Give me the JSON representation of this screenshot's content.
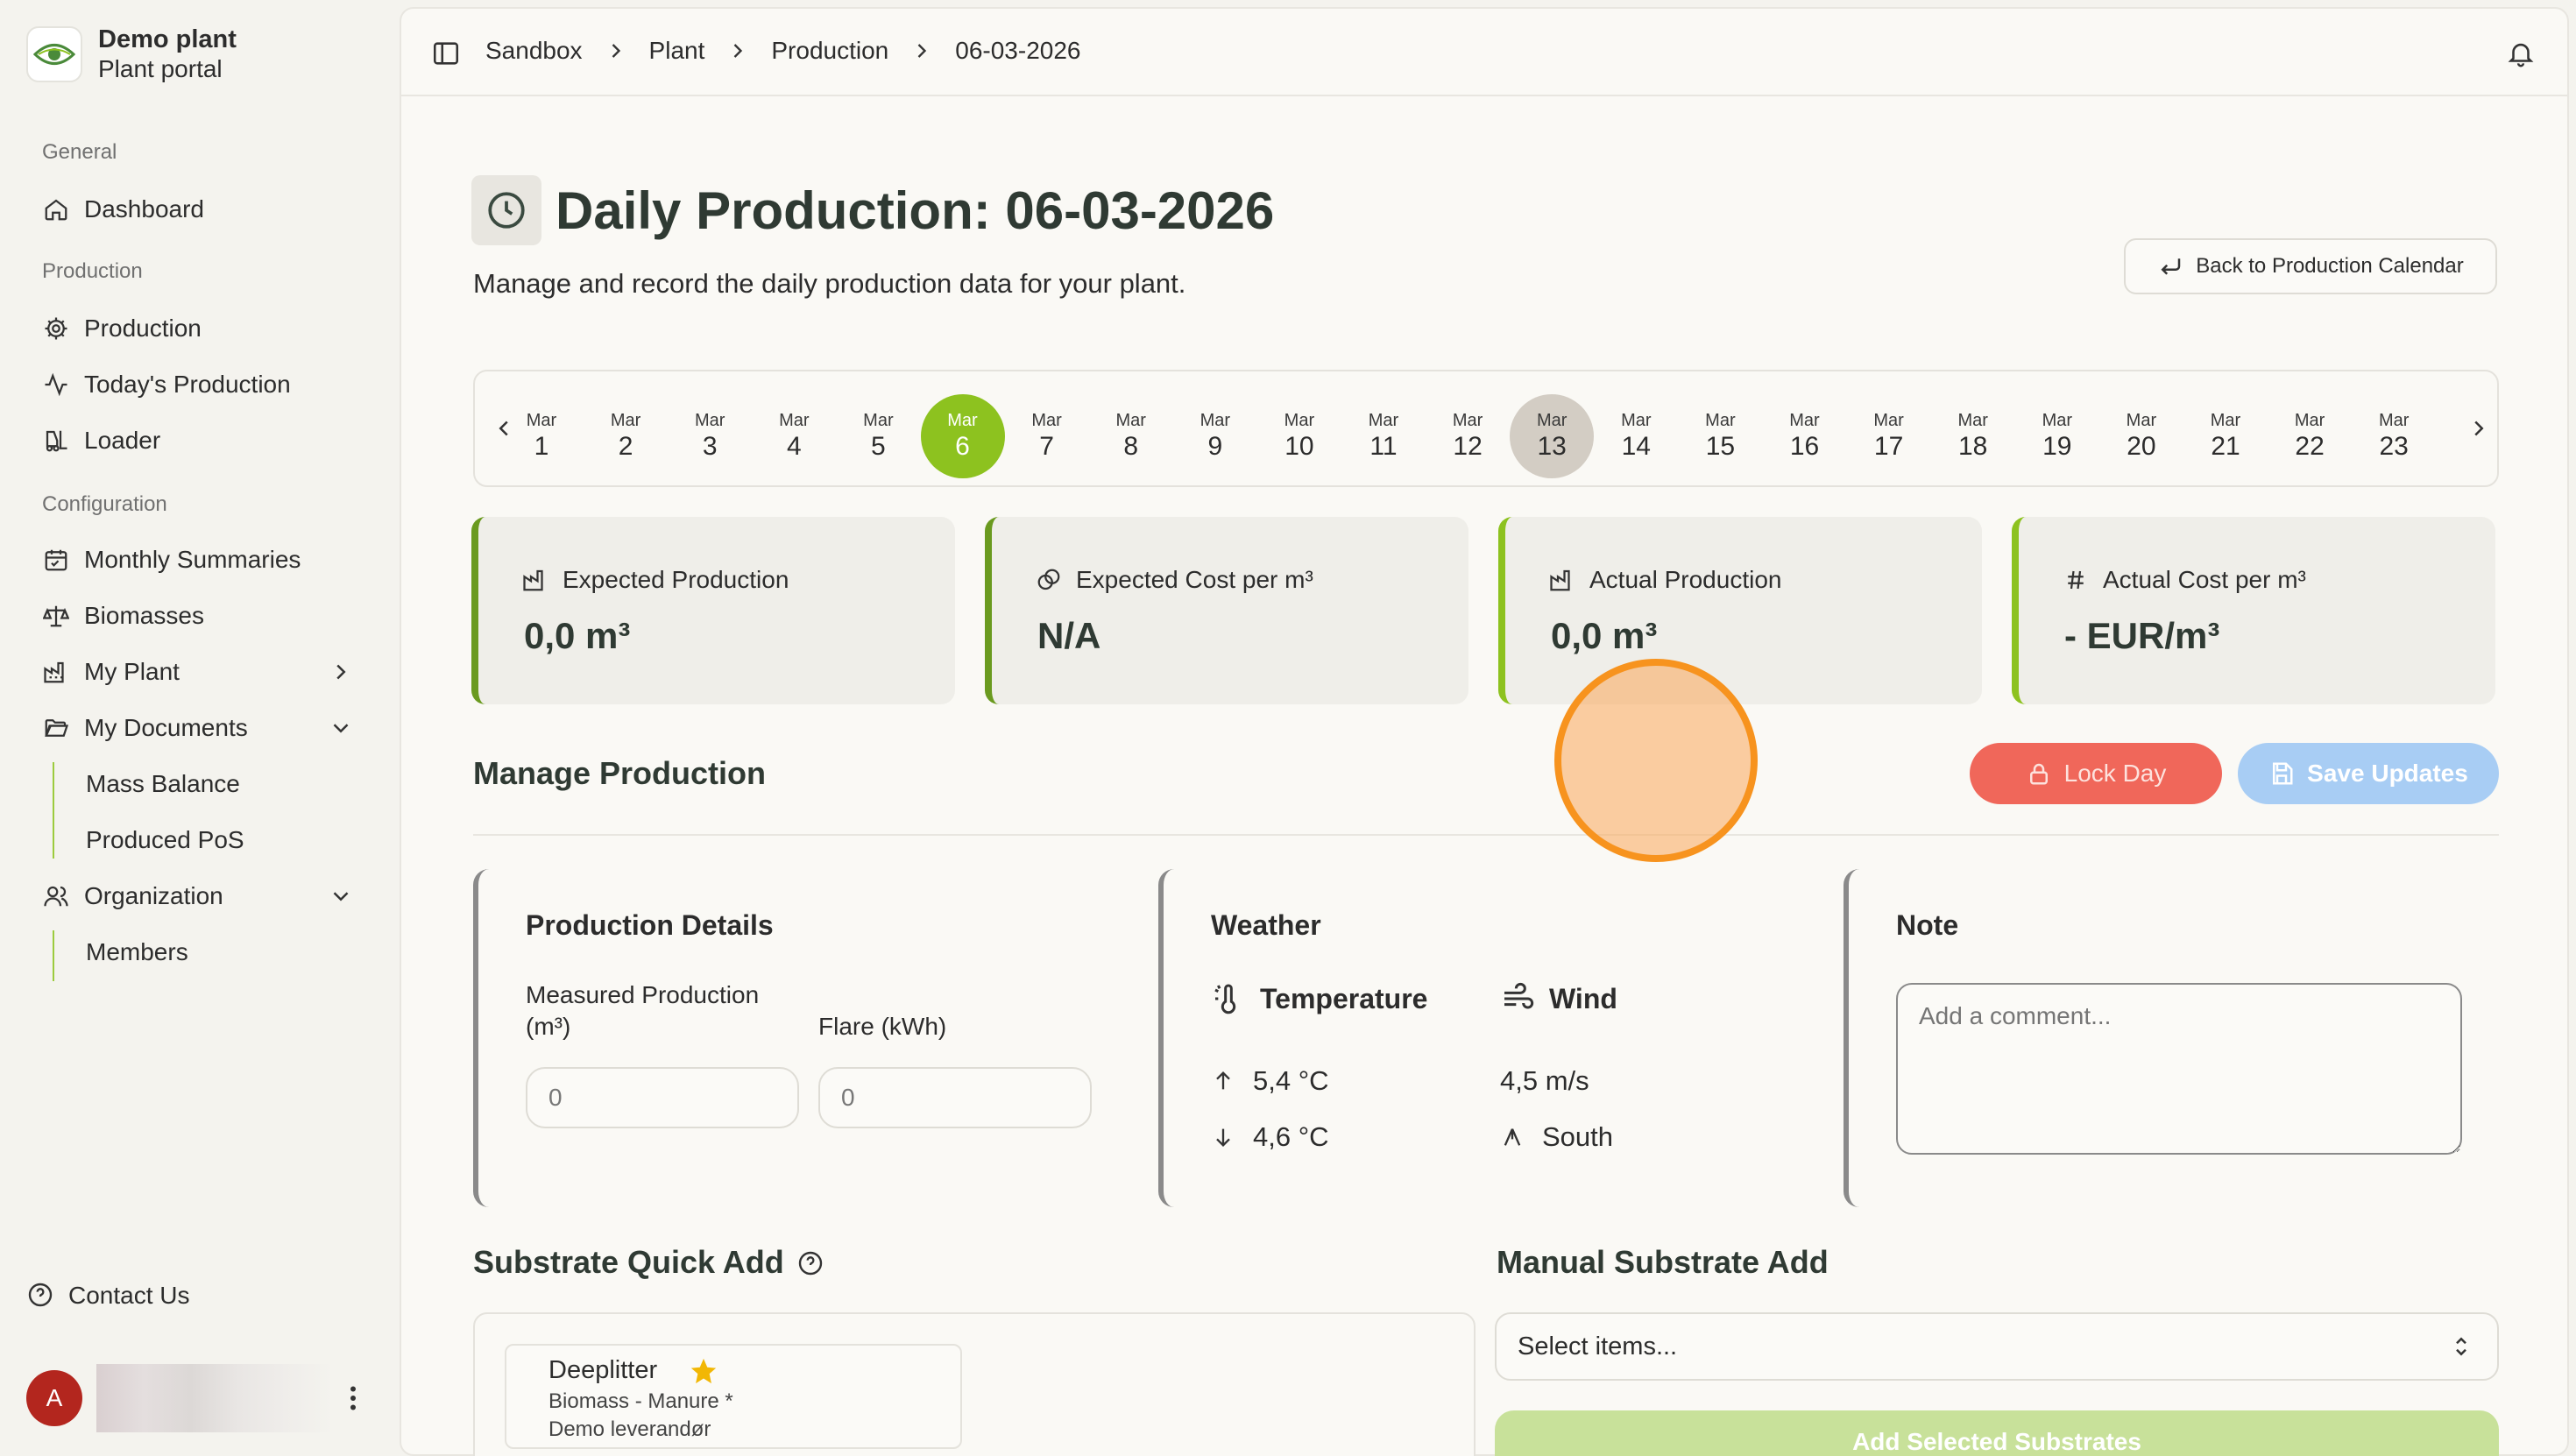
{
  "brand": {
    "name": "Demo plant",
    "subtitle": "Plant portal"
  },
  "sidebar": {
    "groups": [
      {
        "label": "General",
        "items": [
          {
            "label": "Dashboard",
            "icon": "home-icon"
          }
        ]
      },
      {
        "label": "Production",
        "items": [
          {
            "label": "Production",
            "icon": "cog-icon"
          },
          {
            "label": "Today's Production",
            "icon": "activity-icon"
          },
          {
            "label": "Loader",
            "icon": "forklift-icon"
          }
        ]
      },
      {
        "label": "Configuration",
        "items": [
          {
            "label": "Monthly Summaries",
            "icon": "calendar-icon"
          },
          {
            "label": "Biomasses",
            "icon": "scale-icon"
          },
          {
            "label": "My Plant",
            "icon": "factory-icon"
          },
          {
            "label": "My Documents",
            "icon": "folder-open-icon",
            "children": [
              "Mass Balance",
              "Produced PoS"
            ]
          },
          {
            "label": "Organization",
            "icon": "users-icon",
            "children": [
              "Members"
            ]
          }
        ]
      }
    ],
    "contact": "Contact Us",
    "user": {
      "initial": "A"
    }
  },
  "breadcrumb": [
    "Sandbox",
    "Plant",
    "Production",
    "06-03-2026"
  ],
  "page": {
    "title": "Daily Production: 06-03-2026",
    "subtitle": "Manage and record the daily production data for your plant.",
    "back_button": "Back to Production Calendar"
  },
  "date_strip": {
    "month": "Mar",
    "days": [
      "1",
      "2",
      "3",
      "4",
      "5",
      "6",
      "7",
      "8",
      "9",
      "10",
      "11",
      "12",
      "13",
      "14",
      "15",
      "16",
      "17",
      "18",
      "19",
      "20",
      "21",
      "22",
      "23"
    ],
    "selected": "6",
    "today": "13"
  },
  "stats": [
    {
      "label": "Expected Production",
      "value": "0,0 m³",
      "icon": "factory-icon",
      "accent": "#6a9a1f"
    },
    {
      "label": "Expected Cost per m³",
      "value": "N/A",
      "icon": "coins-icon",
      "accent": "#6a9a1f"
    },
    {
      "label": "Actual Production",
      "value": "0,0 m³",
      "icon": "factory-icon",
      "accent": "#8dc21f"
    },
    {
      "label": "Actual Cost per m³",
      "value": "- EUR/m³",
      "icon": "hash-icon",
      "accent": "#8dc21f"
    }
  ],
  "manage": {
    "title": "Manage Production",
    "lock_button": "Lock Day",
    "save_button": "Save Updates"
  },
  "production_details": {
    "title": "Production Details",
    "measured_label_line1": "Measured Production",
    "measured_label_line2": "(m³)",
    "measured_value": "0",
    "flare_label": "Flare (kWh)",
    "flare_value": "0"
  },
  "weather": {
    "title": "Weather",
    "temperature_label": "Temperature",
    "wind_label": "Wind",
    "temp_high": "5,4 °C",
    "temp_low": "4,6 °C",
    "wind_speed": "4,5 m/s",
    "wind_direction": "South"
  },
  "note": {
    "title": "Note",
    "placeholder": "Add a comment..."
  },
  "quick_add": {
    "title": "Substrate Quick Add",
    "items": [
      {
        "name": "Deeplitter",
        "category": "Biomass - Manure *",
        "supplier": "Demo leverandør"
      }
    ]
  },
  "manual_add": {
    "title": "Manual Substrate Add",
    "placeholder": "Select items...",
    "button": "Add Selected Substrates"
  },
  "colors": {
    "accent_green": "#8dc21f",
    "danger": "#f0675a",
    "primary_light": "#a8cdf4",
    "cursor": "#f7931e"
  }
}
